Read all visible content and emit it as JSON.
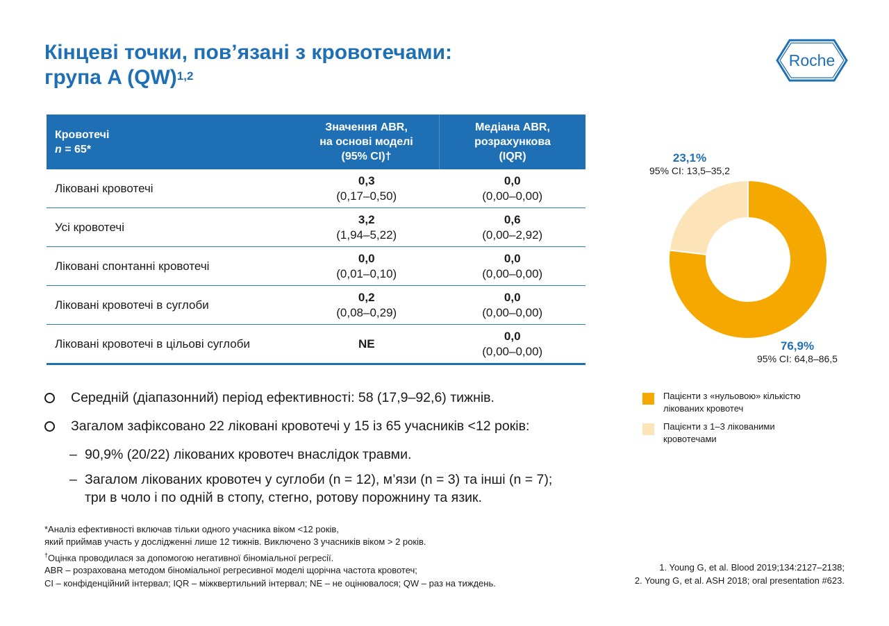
{
  "title": {
    "line1": "Кінцеві точки, пов’язані з кровотечами:",
    "line2": "група A (QW)",
    "superscript": "1,2"
  },
  "logo": {
    "text": "Roche",
    "color": "#1f6fb5"
  },
  "table": {
    "headers": {
      "col1_line1": "Кровотечі",
      "col1_n_label": "n",
      "col1_n_value": " = 65*",
      "col2_line1": "Значення ABR,",
      "col2_line2": "на основі моделі",
      "col2_line3": "(95% CI)†",
      "col3_line1": "Медіана ABR,",
      "col3_line2": "розрахункова",
      "col3_line3": "(IQR)"
    },
    "rows": [
      {
        "label": "Ліковані кровотечі",
        "model_value": "0,3",
        "model_ci": "(0,17–0,50)",
        "median_value": "0,0",
        "median_iqr": "(0,00–0,00)"
      },
      {
        "label": "Усі кровотечі",
        "model_value": "3,2",
        "model_ci": "(1,94–5,22)",
        "median_value": "0,6",
        "median_iqr": "(0,00–2,92)"
      },
      {
        "label": "Ліковані спонтанні кровотечі",
        "model_value": "0,0",
        "model_ci": "(0,01–0,10)",
        "median_value": "0,0",
        "median_iqr": "(0,00–0,00)"
      },
      {
        "label": "Ліковані кровотечі в суглоби",
        "model_value": "0,2",
        "model_ci": "(0,08–0,29)",
        "median_value": "0,0",
        "median_iqr": "(0,00–0,00)"
      },
      {
        "label": "Ліковані кровотечі в цільові суглоби",
        "model_value": "NE",
        "model_ci": "",
        "median_value": "0,0",
        "median_iqr": "(0,00–0,00)"
      }
    ]
  },
  "bullets": {
    "b1": "Середній (діапазонний) період ефективності: 58 (17,9–92,6) тижнів.",
    "b2": "Загалом зафіксовано 22 ліковані кровотечі у 15 із 65 учасників <12 років:",
    "sub1": "90,9% (20/22) лікованих кровотеч внаслідок травми.",
    "sub2_line1": "Загалом лікованих кровотеч у суглоби (n = 12), м’язи (n = 3) та інші (n = 7);",
    "sub2_line2": "три в чоло і по одній в стопу, стегно, ротову порожнину та язик."
  },
  "footnotes": {
    "f1": "*Аналіз ефективності включав тільки одного учасника віком <12 років,",
    "f2": "який приймав участь у дослідженні лише 12 тижнів. Виключено 3 учасників віком > 2 років.",
    "f3_mark": "†",
    "f3": "Оцінка проводилася за допомогою негативної біноміальної регресії.",
    "f4": "ABR – розрахована методом біноміальної регресивної моделі щорічна частота кровотеч;",
    "f5": "CI – конфіденційний інтервал; IQR – міжквертильний інтервал; NE – не оцінювалося; QW – раз на тиждень."
  },
  "references": {
    "r1": "1. Young G, et al. Blood 2019;134:2127–2138;",
    "r2": "2. Young G, et al. ASH 2018; oral presentation #623."
  },
  "chart_data": {
    "type": "pie",
    "variant": "donut",
    "categories": [
      "Пацієнти з «нульовою» кількістю лікованих кровотеч",
      "Пацієнти з 1–3 лікованими кровотечами"
    ],
    "values": [
      76.9,
      23.1
    ],
    "colors": [
      "#f5a800",
      "#fde3b8"
    ],
    "slice_labels": [
      {
        "pct": "76,9%",
        "ci": "95% CI: 64,8–86,5"
      },
      {
        "pct": "23,1%",
        "ci": "95% CI: 13,5–35,2"
      }
    ],
    "legend_position": "bottom"
  },
  "legend": {
    "item1": "Пацієнти з «нульовою» кількістю лікованих кровотеч",
    "item2": "Пацієнти з 1–3 лікованими кровотечами"
  }
}
